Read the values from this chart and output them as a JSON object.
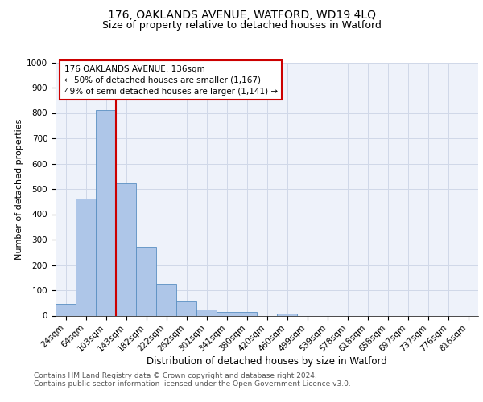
{
  "title1": "176, OAKLANDS AVENUE, WATFORD, WD19 4LQ",
  "title2": "Size of property relative to detached houses in Watford",
  "xlabel": "Distribution of detached houses by size in Watford",
  "ylabel": "Number of detached properties",
  "bar_labels": [
    "24sqm",
    "64sqm",
    "103sqm",
    "143sqm",
    "182sqm",
    "222sqm",
    "262sqm",
    "301sqm",
    "341sqm",
    "380sqm",
    "420sqm",
    "460sqm",
    "499sqm",
    "539sqm",
    "578sqm",
    "618sqm",
    "658sqm",
    "697sqm",
    "737sqm",
    "776sqm",
    "816sqm"
  ],
  "bar_values": [
    47,
    461,
    810,
    521,
    271,
    125,
    57,
    25,
    14,
    13,
    0,
    8,
    0,
    0,
    0,
    0,
    0,
    0,
    0,
    0,
    0
  ],
  "bar_color": "#aec6e8",
  "bar_edge_color": "#5a8fc2",
  "vline_x": 2.5,
  "vline_color": "#cc0000",
  "annotation_text": "176 OAKLANDS AVENUE: 136sqm\n← 50% of detached houses are smaller (1,167)\n49% of semi-detached houses are larger (1,141) →",
  "annotation_box_color": "#ffffff",
  "annotation_box_edge": "#cc0000",
  "ylim": [
    0,
    1000
  ],
  "yticks": [
    0,
    100,
    200,
    300,
    400,
    500,
    600,
    700,
    800,
    900,
    1000
  ],
  "grid_color": "#d0d8e8",
  "bg_color": "#eef2fa",
  "footer_text": "Contains HM Land Registry data © Crown copyright and database right 2024.\nContains public sector information licensed under the Open Government Licence v3.0.",
  "title1_fontsize": 10,
  "title2_fontsize": 9,
  "xlabel_fontsize": 8.5,
  "ylabel_fontsize": 8,
  "tick_fontsize": 7.5,
  "annotation_fontsize": 7.5,
  "footer_fontsize": 6.5
}
